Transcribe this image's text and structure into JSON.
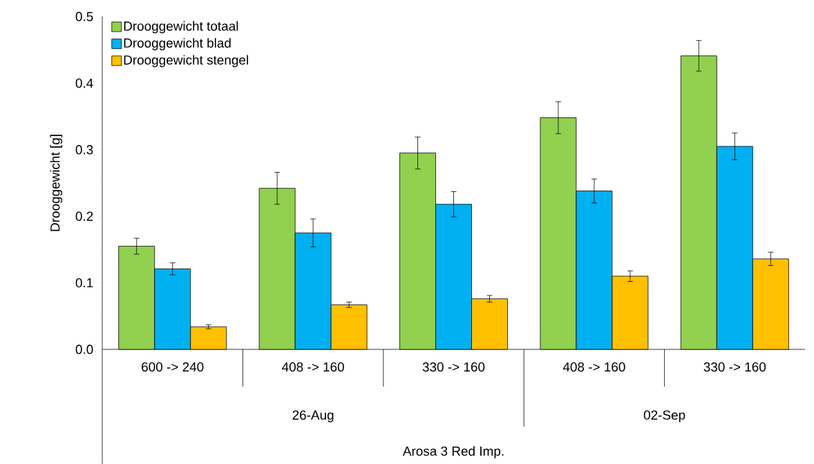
{
  "chart_data": {
    "type": "bar",
    "ylabel": "Drooggewicht [g]",
    "categories": [
      "600 -> 240",
      "408 -> 160",
      "330 -> 160",
      "408 -> 160",
      "330 -> 160"
    ],
    "annotations": [
      "26-Aug",
      "02-Sep",
      "Arosa 3 Red Imp."
    ],
    "series": [
      {
        "name": "Drooggewicht totaal",
        "color": "#92d050",
        "values": [
          0.155,
          0.242,
          0.295,
          0.348,
          0.441
        ],
        "errors": [
          0.012,
          0.024,
          0.024,
          0.024,
          0.023
        ]
      },
      {
        "name": "Drooggewicht blad",
        "color": "#00b0f0",
        "values": [
          0.121,
          0.175,
          0.218,
          0.238,
          0.305
        ],
        "errors": [
          0.009,
          0.021,
          0.019,
          0.018,
          0.02
        ]
      },
      {
        "name": "Drooggewicht stengel",
        "color": "#ffc000",
        "values": [
          0.034,
          0.067,
          0.076,
          0.11,
          0.136
        ],
        "errors": [
          0.003,
          0.004,
          0.005,
          0.008,
          0.01
        ]
      }
    ],
    "ylim": [
      0,
      0.5
    ],
    "yticks": [
      {
        "value": 0,
        "label": "0.0"
      },
      {
        "value": 0.1,
        "label": "0.1"
      },
      {
        "value": 0.2,
        "label": "0.2"
      },
      {
        "value": 0.3,
        "label": "0.3"
      },
      {
        "value": 0.4,
        "label": "0.4"
      },
      {
        "value": 0.5,
        "label": "0.5"
      }
    ],
    "legend": "top left",
    "grid": false
  }
}
